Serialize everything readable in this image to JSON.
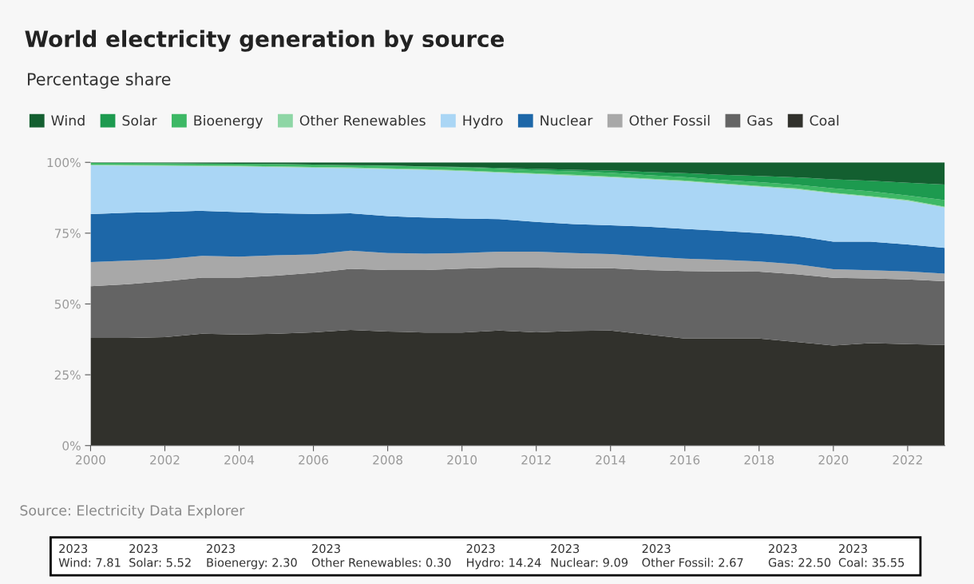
{
  "chart_data": {
    "type": "area",
    "stacked": true,
    "title": "World electricity generation by source",
    "subtitle": "Percentage share",
    "x": [
      2000,
      2001,
      2002,
      2003,
      2004,
      2005,
      2006,
      2007,
      2008,
      2009,
      2010,
      2011,
      2012,
      2013,
      2014,
      2015,
      2016,
      2017,
      2018,
      2019,
      2020,
      2021,
      2022,
      2023
    ],
    "series": [
      {
        "name": "Coal",
        "color": "#31312c",
        "values": [
          38.0,
          38.0,
          38.3,
          39.5,
          39.2,
          39.5,
          40.0,
          40.8,
          40.3,
          39.9,
          39.9,
          40.6,
          40.0,
          40.5,
          40.6,
          39.2,
          37.8,
          37.8,
          37.8,
          36.6,
          35.3,
          36.2,
          35.8,
          35.55
        ]
      },
      {
        "name": "Gas",
        "color": "#646464",
        "values": [
          18.3,
          19.0,
          19.7,
          19.8,
          20.1,
          20.5,
          21.0,
          21.6,
          21.7,
          22.1,
          22.6,
          22.2,
          22.8,
          22.2,
          22.0,
          22.8,
          23.8,
          23.7,
          23.6,
          23.9,
          23.9,
          22.8,
          22.9,
          22.5
        ]
      },
      {
        "name": "Other Fossil",
        "color": "#a8a8a8",
        "values": [
          8.5,
          8.3,
          7.8,
          7.7,
          7.4,
          7.2,
          6.5,
          6.4,
          6.0,
          5.8,
          5.5,
          5.7,
          5.7,
          5.3,
          5.0,
          4.8,
          4.4,
          4.1,
          3.6,
          3.5,
          3.1,
          2.9,
          2.8,
          2.67
        ]
      },
      {
        "name": "Nuclear",
        "color": "#1d67a8",
        "values": [
          16.9,
          16.9,
          16.7,
          15.9,
          15.7,
          14.8,
          14.3,
          13.2,
          13.0,
          12.7,
          12.2,
          11.5,
          10.5,
          10.2,
          10.2,
          10.5,
          10.5,
          10.2,
          10.0,
          10.0,
          9.7,
          10.1,
          9.5,
          9.09
        ]
      },
      {
        "name": "Hydro",
        "color": "#aad6f5",
        "values": [
          17.2,
          16.6,
          16.2,
          15.7,
          16.1,
          16.3,
          16.3,
          15.9,
          16.6,
          16.8,
          16.7,
          16.3,
          16.8,
          17.1,
          16.9,
          16.7,
          16.8,
          16.5,
          16.4,
          16.5,
          17.0,
          15.8,
          15.4,
          14.24
        ]
      },
      {
        "name": "Other Renewables",
        "color": "#8ed6a5",
        "values": [
          0.3,
          0.3,
          0.3,
          0.3,
          0.3,
          0.3,
          0.3,
          0.3,
          0.3,
          0.3,
          0.3,
          0.3,
          0.3,
          0.3,
          0.3,
          0.3,
          0.3,
          0.3,
          0.3,
          0.3,
          0.3,
          0.3,
          0.3,
          0.3
        ]
      },
      {
        "name": "Bioenergy",
        "color": "#3db865",
        "values": [
          0.6,
          0.65,
          0.7,
          0.7,
          0.7,
          0.8,
          0.8,
          0.8,
          0.9,
          0.9,
          1.0,
          1.1,
          1.1,
          1.2,
          1.3,
          1.2,
          1.2,
          1.2,
          1.3,
          1.3,
          1.5,
          1.7,
          1.6,
          2.3
        ]
      },
      {
        "name": "Solar",
        "color": "#1d9a4f",
        "values": [
          0,
          0,
          0,
          0,
          0,
          0,
          0,
          0,
          0.1,
          0.1,
          0.2,
          0.3,
          0.5,
          0.6,
          0.8,
          1.1,
          1.4,
          1.8,
          2.2,
          2.6,
          3.2,
          3.7,
          4.5,
          5.52
        ]
      },
      {
        "name": "Wind",
        "color": "#135f30",
        "values": [
          0.2,
          0.25,
          0.3,
          0.4,
          0.5,
          0.6,
          0.8,
          1.0,
          1.1,
          1.4,
          1.6,
          2.0,
          2.3,
          2.6,
          2.9,
          3.4,
          3.8,
          4.4,
          4.8,
          5.3,
          6.0,
          6.5,
          7.2,
          7.81
        ]
      }
    ],
    "xlim": [
      2000,
      2023
    ],
    "xticks": [
      2000,
      2002,
      2004,
      2006,
      2008,
      2010,
      2012,
      2014,
      2016,
      2018,
      2020,
      2022
    ],
    "ylim": [
      0,
      100
    ],
    "yticks": [
      {
        "value": 0,
        "label": "0%"
      },
      {
        "value": 25,
        "label": "25%"
      },
      {
        "value": 50,
        "label": "50%"
      },
      {
        "value": 75,
        "label": "75%"
      },
      {
        "value": 100,
        "label": "100%"
      }
    ],
    "grid": false,
    "legend": "top left",
    "annotations": [
      "Source: Electricity Data Explorer",
      "2023\nWind: 7.81",
      "2023\nSolar: 5.52",
      "2023\nBioenergy: 2.30",
      "2023\nOther Renewables: 0.30",
      "2023\nHydro: 14.24",
      "2023\nNuclear: 9.09",
      "2023\nOther Fossil: 2.67",
      "2023\nGas: 22.50",
      "2023\nCoal: 35.55"
    ]
  }
}
